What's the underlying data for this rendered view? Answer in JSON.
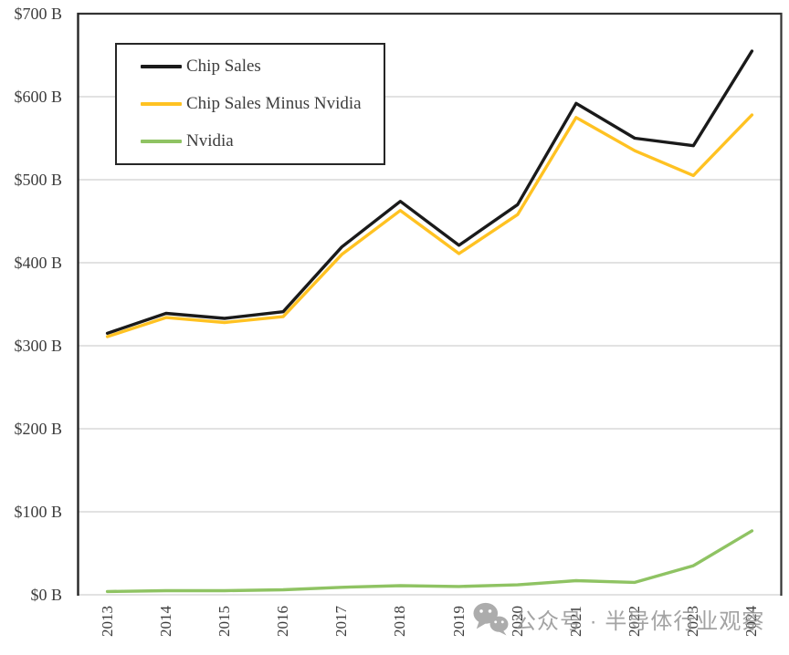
{
  "chart_data": {
    "type": "line",
    "x": [
      "2013",
      "2014",
      "2015",
      "2016",
      "2017",
      "2018",
      "2019",
      "2020",
      "2021",
      "2022",
      "2023",
      "2024"
    ],
    "series": [
      {
        "name": "Chip Sales",
        "color": "#1a1a1a",
        "values": [
          315,
          339,
          333,
          341,
          419,
          474,
          421,
          470,
          592,
          550,
          541,
          655
        ]
      },
      {
        "name": "Chip Sales Minus Nvidia",
        "color": "#FFC222",
        "values": [
          311,
          334,
          328,
          335,
          410,
          463,
          411,
          458,
          575,
          535,
          505,
          578
        ]
      },
      {
        "name": "Nvidia",
        "color": "#8FC363",
        "values": [
          4,
          5,
          5,
          6,
          9,
          11,
          10,
          12,
          17,
          15,
          35,
          77
        ]
      }
    ],
    "title": "",
    "xlabel": "",
    "ylabel": "",
    "ylim": [
      0,
      700
    ],
    "ytick_step": 100,
    "ytick_labels": [
      "$0 B",
      "$100 B",
      "$200 B",
      "$300 B",
      "$400 B",
      "$500 B",
      "$600 B",
      "$700 B"
    ],
    "grid": true,
    "legend_position": "top-left",
    "units": "USD billions"
  },
  "legend": {
    "entries": [
      "Chip Sales",
      "Chip Sales Minus Nvidia",
      "Nvidia"
    ]
  },
  "watermark": {
    "icon": "wechat-icon",
    "text": "公众号 · 半导体行业观察"
  },
  "colors": {
    "grid": "#D9D9D9",
    "axis": "#262626",
    "plot_border": "#333333",
    "tick_text": "#3d3d3d",
    "watermark": "#8f8f8f",
    "background": "#ffffff"
  }
}
